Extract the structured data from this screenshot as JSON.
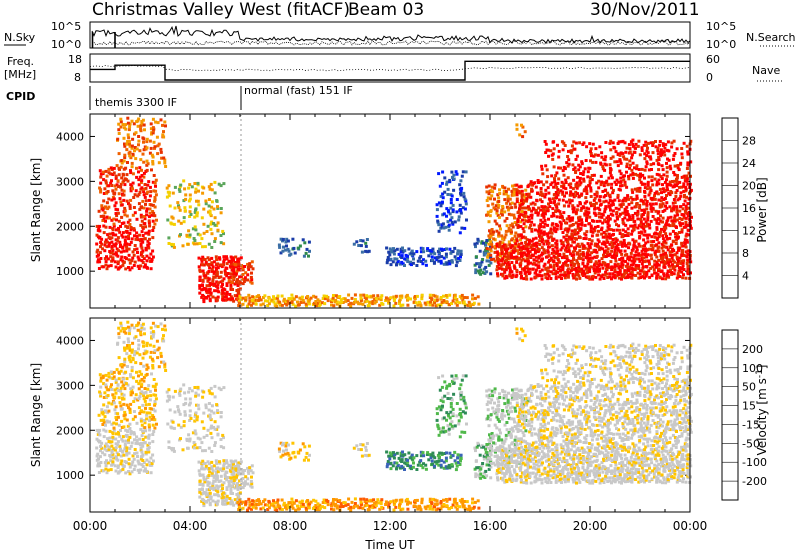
{
  "header": {
    "title": "Christmas Valley West (fitACF)",
    "beam": "Beam 03",
    "date": "30/Nov/2011"
  },
  "colors": {
    "power_scale": [
      "#0019ff",
      "#1a3ca8",
      "#3a6ea5",
      "#2f8a4a",
      "#5aa55a",
      "#f5d000",
      "#f59a00",
      "#f06000",
      "#e83000",
      "#ff0000"
    ],
    "velocity_scale": [
      "#ff0000",
      "#ff5a00",
      "#ff9800",
      "#ffc400",
      "#c8c8c8",
      "#c8c8c8",
      "#4fb84a",
      "#2e8b57",
      "#3a63b8",
      "#1a22c8"
    ]
  },
  "chart_data": [
    {
      "type": "line",
      "panel": "noise-and-search",
      "ylabel_left": "N.Sky",
      "ylabel_right": "N.Search",
      "left_ticks": [
        "10^5",
        "10^0"
      ],
      "right_ticks": [
        "10^5",
        "10^0"
      ]
    },
    {
      "type": "line",
      "panel": "frequency-nave",
      "ylabel_left": "Freq. [MHz]",
      "ylabel_right": "Nave",
      "left_ticks": [
        "18",
        "8"
      ],
      "right_ticks": [
        "60",
        "0"
      ],
      "series": [
        {
          "name": "Freq.",
          "x": [
            0,
            1,
            1,
            3,
            3,
            15,
            15,
            24
          ],
          "y": [
            12.5,
            12.5,
            14,
            14,
            8.7,
            8.7,
            15.4,
            15.4
          ]
        }
      ]
    },
    {
      "type": "table",
      "panel": "cpid",
      "label": "CPID",
      "segments": [
        {
          "text": "themis 3300 IF",
          "start": 0,
          "end": 6
        },
        {
          "text": "normal (fast) 151 IF",
          "start": 6,
          "end": 24
        }
      ]
    },
    {
      "type": "heatmap",
      "panel": "power",
      "ylabel": "Slant Range [km]",
      "yticks": [
        1000,
        2000,
        3000,
        4000
      ],
      "ylim": [
        180,
        4500
      ],
      "colorbar_label": "Power [dB]",
      "colorbar_ticks": [
        "28",
        "24",
        "20",
        "16",
        "12",
        "8",
        "4"
      ],
      "colorbar_range": [
        0,
        30
      ]
    },
    {
      "type": "heatmap",
      "panel": "velocity",
      "ylabel": "Slant Range [km]",
      "yticks": [
        1000,
        2000,
        3000,
        4000
      ],
      "ylim": [
        180,
        4500
      ],
      "colorbar_label": "Velocity [m s-1]",
      "colorbar_ticks": [
        "200",
        "100",
        "50",
        "15",
        "-15",
        "-50",
        "-100",
        "-200"
      ],
      "xlabel": "Time UT",
      "xticks": [
        "00:00",
        "04:00",
        "08:00",
        "12:00",
        "16:00",
        "20:00",
        "00:00"
      ],
      "xlim": [
        0,
        24
      ]
    }
  ]
}
